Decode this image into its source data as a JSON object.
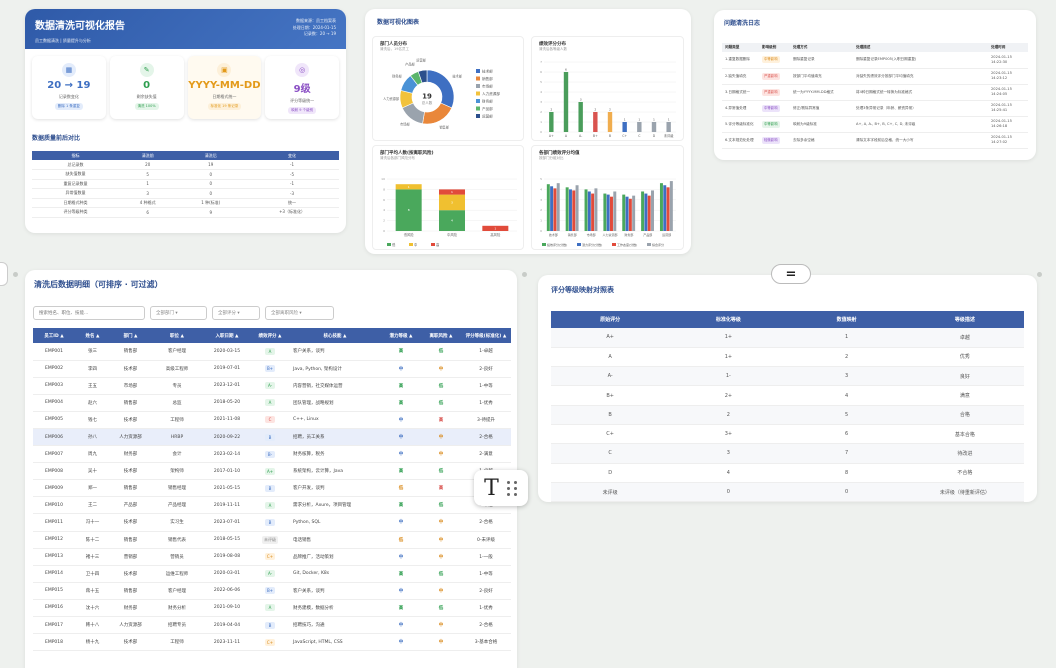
{
  "report": {
    "title": "数据清洗可视化报告",
    "subtitle": "员工数据清洗  |  质量提升与分析",
    "meta": [
      "数据来源：员工档案表",
      "处理日期：2024-01-15",
      "记录数：20 → 19"
    ],
    "kpis": [
      {
        "icon_name": "calendar-icon",
        "icon": "▦",
        "value": "20 → 19",
        "label": "记录数变化",
        "tag": "删除 1 条重复",
        "color": "#3e6fc2",
        "bg": "#e3ecfb",
        "tag_bg": "#e3ecfb"
      },
      {
        "icon_name": "pencil-icon",
        "icon": "✎",
        "value": "0",
        "label": "剩余缺失值",
        "tag": "清洗 100%",
        "color": "#2e9e4f",
        "bg": "#e4f5e9",
        "tag_bg": "#e4f5e9"
      },
      {
        "icon_name": "date-icon",
        "icon": "▣",
        "value": "YYYY-MM-DD",
        "label": "日期格式统一",
        "tag": "标准化 19 条记录",
        "color": "#e39a1a",
        "bg": "#fdf0d9",
        "tag_bg": "#fdf0d9"
      },
      {
        "icon_name": "target-icon",
        "icon": "◎",
        "value": "9级",
        "label": "评分等级统一",
        "tag": "映射 9 个级别",
        "color": "#8a4fc4",
        "bg": "#f0e6fa",
        "tag_bg": "#f0e6fa"
      }
    ],
    "quality_title": "数据质量前后对比",
    "quality_headers": [
      "指标",
      "清洗前",
      "清洗后",
      "变化"
    ],
    "quality_rows": [
      [
        "总记录数",
        "20",
        "19",
        "-1"
      ],
      [
        "缺失值数量",
        "5",
        "0",
        "-5"
      ],
      [
        "重复记录数量",
        "1",
        "0",
        "-1"
      ],
      [
        "异常值数量",
        "3",
        "0",
        "-3"
      ],
      [
        "日期格式种类",
        "4 种格式",
        "1 种(标准)",
        "统一"
      ],
      [
        "评分等级种类",
        "6",
        "9",
        "+3（标准化）"
      ]
    ]
  },
  "charts": {
    "title": "数据可视化图表",
    "donut": {
      "title": "部门人员分布",
      "subtitle": "清洗后，19名员工",
      "center_value": "19",
      "center_label": "总人数"
    },
    "bar1": {
      "title": "绩效评分分布",
      "subtitle": "清洗后各等级人数"
    },
    "bar2": {
      "title": "部门平均人数(按离职风险)",
      "subtitle": "清洗后各部门风险分布"
    },
    "bar3": {
      "title": "各部门绩效评分均值",
      "subtitle": "按部门分组对比"
    }
  },
  "chart_data": [
    {
      "type": "pie",
      "title": "部门人员分布",
      "categories": [
        "技术部",
        "销售部",
        "市场部",
        "人力资源部",
        "财务部",
        "产品部",
        "运营部"
      ],
      "values": [
        6,
        4,
        3,
        2,
        2,
        1,
        1
      ],
      "colors": [
        "#3e6fc2",
        "#e9873a",
        "#9aa3ad",
        "#f2c23c",
        "#4a92d6",
        "#5bb56b",
        "#2c4f8c"
      ]
    },
    {
      "type": "bar",
      "title": "绩效评分分布",
      "categories": [
        "A+",
        "A",
        "A-",
        "B+",
        "B",
        "C+",
        "C",
        "D",
        "未评级"
      ],
      "values": [
        2,
        6,
        3,
        2,
        2,
        1,
        1,
        1,
        1
      ],
      "colors": [
        "#4a9d5b",
        "#4a9d5b",
        "#4a9d5b",
        "#d9534f",
        "#f0ad4e",
        "#3e6fc2",
        "#9aa3ad",
        "#9aa3ad",
        "#9aa3ad"
      ],
      "ylim": [
        0,
        7
      ]
    },
    {
      "type": "bar",
      "title": "部门平均人数(按离职风险)",
      "categories": [
        "低风险",
        "中风险",
        "高风险"
      ],
      "series": [
        {
          "name": "低",
          "values": [
            8,
            4,
            0
          ],
          "color": "#4aa85c"
        },
        {
          "name": "中",
          "values": [
            1,
            3,
            0
          ],
          "color": "#f0c030"
        },
        {
          "name": "高",
          "values": [
            0,
            1,
            1
          ],
          "color": "#e14b3b"
        }
      ],
      "ylim": [
        0,
        10
      ]
    },
    {
      "type": "bar",
      "title": "各部门绩效评分均值",
      "categories": [
        "技术部",
        "销售部",
        "市场部",
        "人力资源部",
        "财务部",
        "产品部",
        "运营部"
      ],
      "series": [
        {
          "name": "绩效评分(分数)",
          "values": [
            4.5,
            4.2,
            4.0,
            3.6,
            3.5,
            3.8,
            4.6
          ],
          "color": "#4aa85c"
        },
        {
          "name": "潜力评分(分数)",
          "values": [
            4.3,
            4.0,
            3.8,
            3.5,
            3.3,
            3.6,
            4.4
          ],
          "color": "#3e6fc2"
        },
        {
          "name": "工作态度(分数)",
          "values": [
            4.1,
            3.9,
            3.6,
            3.3,
            3.1,
            3.4,
            4.2
          ],
          "color": "#e14b3b"
        },
        {
          "name": "综合评分",
          "values": [
            4.6,
            4.4,
            4.1,
            3.8,
            3.4,
            3.9,
            4.8
          ],
          "color": "#9aa3ad"
        }
      ],
      "ylim": [
        0,
        5
      ]
    }
  ],
  "issues": {
    "title": "问题清洗日志",
    "headers": [
      "问题类型",
      "影响级别",
      "处理方式",
      "处理描述",
      "处理时间"
    ],
    "rows": [
      [
        "1.重复数据删除",
        "中等影响",
        "删除重复记录",
        "删除重复记录EMP005(入职日期重复)",
        "2024-01-15 14:22:30",
        "#fff1dc",
        "#d98a1a"
      ],
      [
        "2.缺失值填充",
        "严重影响",
        "按部门平均值填充",
        "对缺失的绩效评分按部门平均值填充",
        "2024-01-15 14:23:12",
        "#fde4e1",
        "#d9534f"
      ],
      [
        "3.日期格式统一",
        "严重影响",
        "统一为YYYY-MM-DD格式",
        "将4种日期格式统一转换为标准格式",
        "2024-01-15 14:24:05",
        "#fde4e1",
        "#d9534f"
      ],
      [
        "4.异常值处理",
        "中等影响",
        "修正/剔除异常值",
        "处理3条异常记录（年龄、薪资异常）",
        "2024-01-15 14:25:41",
        "#ece3fa",
        "#8a4fc4"
      ],
      [
        "5.评分等级标准化",
        "中等影响",
        "映射为9级标准",
        "A+, A, A-, B+, B, C+, C, D, 未评级",
        "2024-01-15 14:26:18",
        "#e6f4ea",
        "#2e9e4f"
      ],
      [
        "6.文本规范化处理",
        "轻微影响",
        "去除多余空格",
        "清除文本字段前后空格，统一大小写",
        "2024-01-15 14:27:02",
        "#ece3fa",
        "#8a4fc4"
      ]
    ]
  },
  "detail": {
    "title": "清洗后数据明细（可排序 · 可过滤）",
    "search_placeholder": "搜索姓名、职位、技能...",
    "dept_filter": "全部部门 ▾",
    "grade_filter": "全部评分 ▾",
    "risk_filter": "全部离职风险 ▾",
    "headers": [
      "员工ID ▲",
      "姓名 ▲",
      "部门 ▲",
      "职位 ▲",
      "入职日期 ▲",
      "绩效评分 ▲",
      "核心技能 ▲",
      "潜力等级 ▲",
      "离职风险 ▲",
      "评分等级(标准化) ▲"
    ],
    "rows": [
      [
        "EMP001",
        "张三",
        "销售部",
        "客户经理",
        "2020-03-15",
        "A",
        "客户关系，谈判",
        "高",
        "低",
        "1-卓越"
      ],
      [
        "EMP002",
        "李四",
        "技术部",
        "高级工程师",
        "2019-07-01",
        "B+",
        "Java, Python, 架构设计",
        "中",
        "中",
        "2-良好"
      ],
      [
        "EMP003",
        "王五",
        "市场部",
        "专员",
        "2023-12-01",
        "A-",
        "内容营销，社交媒体运营",
        "高",
        "低",
        "1-中等"
      ],
      [
        "EMP004",
        "赵六",
        "销售部",
        "总监",
        "2018-05-20",
        "A",
        "团队管理，战略规划",
        "高",
        "低",
        "1-优秀"
      ],
      [
        "EMP005",
        "钱七",
        "技术部",
        "工程师",
        "2021-11-08",
        "C",
        "C++, Linux",
        "中",
        "高",
        "3-待提升"
      ],
      [
        "EMP006",
        "孙八",
        "人力资源部",
        "HRBP",
        "2020-09-22",
        "B",
        "招聘，员工关系",
        "中",
        "中",
        "2-合格"
      ],
      [
        "EMP007",
        "周九",
        "财务部",
        "会计",
        "2023-02-14",
        "B-",
        "财务核算，税务",
        "中",
        "中",
        "2-满意"
      ],
      [
        "EMP008",
        "吴十",
        "技术部",
        "架构师",
        "2017-01-10",
        "A+",
        "系统架构，云计算，Java",
        "高",
        "低",
        "1-卓越"
      ],
      [
        "EMP009",
        "郑一",
        "销售部",
        "销售经理",
        "2021-05-15",
        "B",
        "客户开发，谈判",
        "低",
        "高",
        "1-合格"
      ],
      [
        "EMP010",
        "王二",
        "产品部",
        "产品经理",
        "2019-11-11",
        "A",
        "需求分析，Axure，项目管理",
        "高",
        "低",
        "1-卓越"
      ],
      [
        "EMP011",
        "冯十一",
        "技术部",
        "实习生",
        "2023-07-01",
        "B",
        "Python, SQL",
        "中",
        "中",
        "2-合格"
      ],
      [
        "EMP012",
        "陈十二",
        "销售部",
        "销售代表",
        "2018-05-15",
        "未评级",
        "电话销售",
        "低",
        "中",
        "0-未评级"
      ],
      [
        "EMP013",
        "褚十三",
        "营销部",
        "营销员",
        "2019-08-08",
        "C+",
        "品牌推广，活动策划",
        "中",
        "中",
        "1-一般"
      ],
      [
        "EMP014",
        "卫十四",
        "技术部",
        "运维工程师",
        "2020-03-01",
        "A-",
        "Git, Docker, K8s",
        "高",
        "低",
        "1-中等"
      ],
      [
        "EMP015",
        "蒋十五",
        "销售部",
        "客户经理",
        "2022-06-06",
        "B+",
        "客户关系，谈判",
        "中",
        "中",
        "2-良好"
      ],
      [
        "EMP016",
        "沈十六",
        "财务部",
        "财务分析",
        "2021-09-10",
        "A",
        "财务建模，数据分析",
        "高",
        "低",
        "1-优秀"
      ],
      [
        "EMP017",
        "韩十八",
        "人力资源部",
        "招聘专员",
        "2019-04-04",
        "B",
        "招聘技巧，沟通",
        "中",
        "中",
        "2-合格"
      ],
      [
        "EMP018",
        "杨十九",
        "技术部",
        "工程师",
        "2023-11-11",
        "C+",
        "JavaScript, HTML, CSS",
        "中",
        "中",
        "3-基本合格"
      ]
    ]
  },
  "mapping": {
    "title": "评分等级映射对照表",
    "headers": [
      "原始评分",
      "标准化等级",
      "数值映射",
      "等级描述"
    ],
    "rows": [
      [
        "A+",
        "1+",
        "1",
        "卓越"
      ],
      [
        "A",
        "1+",
        "2",
        "优秀"
      ],
      [
        "A-",
        "1-",
        "3",
        "良好"
      ],
      [
        "B+",
        "2+",
        "4",
        "满意"
      ],
      [
        "B",
        "2",
        "5",
        "合格"
      ],
      [
        "C+",
        "3+",
        "6",
        "基本合格"
      ],
      [
        "C",
        "3",
        "7",
        "待改进"
      ],
      [
        "D",
        "4",
        "8",
        "不合格"
      ],
      [
        "未评级",
        "0",
        "0",
        "未评级（待重新评估）"
      ]
    ]
  },
  "toolbar": {
    "text_tool": "T",
    "eq_button": "="
  }
}
